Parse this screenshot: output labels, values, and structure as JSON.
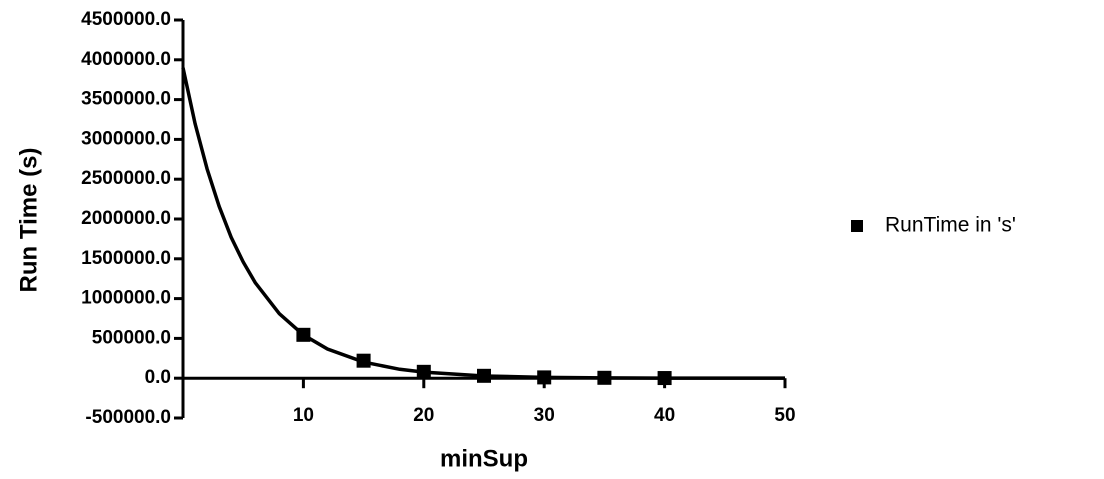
{
  "chart_data": {
    "type": "scatter",
    "x_label": "minSup",
    "y_label": "Run Time (s)",
    "xlim": [
      0,
      50
    ],
    "ylim": [
      -500000,
      4500000
    ],
    "xticks": [
      10,
      20,
      30,
      40,
      50
    ],
    "yticks": [
      {
        "value": -500000,
        "label": "-500000.0"
      },
      {
        "value": 0,
        "label": "0.0"
      },
      {
        "value": 500000,
        "label": "500000.0"
      },
      {
        "value": 1000000,
        "label": "1000000.0"
      },
      {
        "value": 1500000,
        "label": "1500000.0"
      },
      {
        "value": 2000000,
        "label": "2000000.0"
      },
      {
        "value": 2500000,
        "label": "2500000.0"
      },
      {
        "value": 3000000,
        "label": "3000000.0"
      },
      {
        "value": 3500000,
        "label": "3500000.0"
      },
      {
        "value": 4000000,
        "label": "4000000.0"
      },
      {
        "value": 4500000,
        "label": "4500000.0"
      }
    ],
    "legend": "right",
    "series": [
      {
        "name": "RunTime in 's'",
        "color": "#000000",
        "x": [
          10,
          15,
          20,
          25,
          30,
          35,
          40
        ],
        "values": [
          545000,
          220000,
          80000,
          30000,
          10000,
          5000,
          2000
        ]
      }
    ],
    "fit": {
      "color": "#000000",
      "x": [
        0,
        1,
        2,
        3,
        4,
        5,
        6,
        8,
        10,
        12,
        15,
        18,
        20,
        25,
        30,
        35,
        40,
        45,
        50
      ],
      "values": [
        3900000,
        3200000,
        2630000,
        2160000,
        1770000,
        1460000,
        1200000,
        810000,
        544000,
        367000,
        203000,
        112000,
        76000,
        28000,
        11000,
        4000,
        1500,
        550,
        200
      ]
    }
  }
}
